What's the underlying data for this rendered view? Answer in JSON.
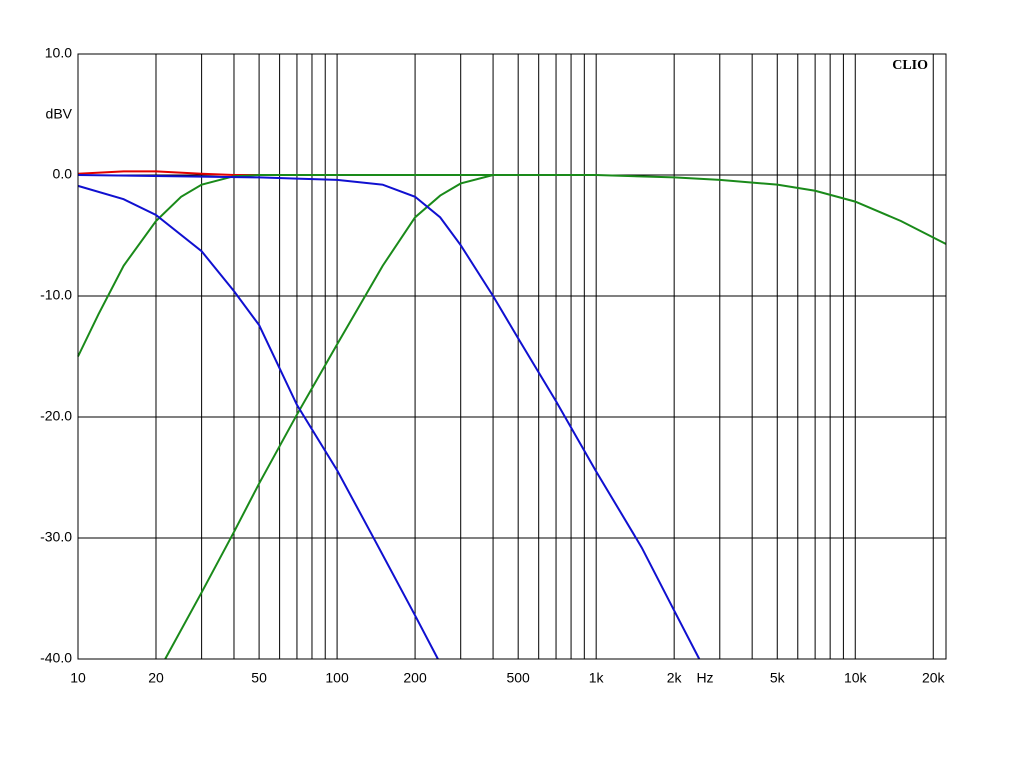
{
  "chart_data": {
    "type": "line",
    "log_x": true,
    "grid": true,
    "brand": "CLIO",
    "y_label": "dBV",
    "x_label": "Hz",
    "xlim": [
      10,
      22400
    ],
    "ylim": [
      -40,
      10
    ],
    "xticks": [
      10,
      20,
      50,
      100,
      200,
      500,
      {
        "value": 1000,
        "label": "1k"
      },
      {
        "value": 2000,
        "label": "2k"
      },
      {
        "value": 5000,
        "label": "5k"
      },
      {
        "value": 10000,
        "label": "10k"
      },
      {
        "value": 20000,
        "label": "20k"
      }
    ],
    "x_minor_grid": [
      30,
      40,
      60,
      70,
      80,
      90,
      300,
      400,
      600,
      700,
      800,
      900,
      3000,
      4000,
      6000,
      7000,
      8000,
      9000
    ],
    "yticks": [
      {
        "value": 10,
        "label": "10.0"
      },
      {
        "value": 0,
        "label": "0.0"
      },
      {
        "value": -10,
        "label": "-10.0"
      },
      {
        "value": -20,
        "label": "-20.0"
      },
      {
        "value": -30,
        "label": "-30.0"
      },
      {
        "value": -40,
        "label": "-40.0"
      }
    ],
    "series": [
      {
        "color": "#e00000",
        "x": [
          10,
          15,
          20,
          30,
          40,
          100,
          400
        ],
        "values": [
          0.1,
          0.3,
          0.3,
          0.1,
          0,
          0,
          0
        ]
      },
      {
        "color": "#1a8a1a",
        "x": [
          10,
          12,
          15,
          20,
          25,
          30,
          40,
          50,
          100,
          400
        ],
        "values": [
          -15,
          -11.5,
          -7.5,
          -3.8,
          -1.8,
          -0.8,
          -0.1,
          0,
          0,
          0
        ]
      },
      {
        "color": "#1a8a1a",
        "x": [
          21.7,
          30,
          40,
          50,
          70,
          100,
          150,
          200,
          250,
          300,
          400,
          1000,
          2000,
          3000,
          5000,
          7000,
          10000,
          15000,
          22400
        ],
        "values": [
          -40,
          -34.5,
          -29.5,
          -25.5,
          -19.8,
          -14,
          -7.5,
          -3.5,
          -1.7,
          -0.7,
          0,
          0,
          -0.2,
          -0.4,
          -0.8,
          -1.3,
          -2.2,
          -3.8,
          -5.7
        ]
      },
      {
        "color": "#1010d0",
        "x": [
          10,
          15,
          20,
          30,
          40,
          50,
          70,
          100,
          140,
          200,
          245
        ],
        "values": [
          -0.9,
          -2,
          -3.3,
          -6.3,
          -9.6,
          -12.4,
          -19,
          -24.4,
          -30.2,
          -36.4,
          -40
        ]
      },
      {
        "color": "#1010d0",
        "x": [
          10,
          50,
          70,
          100,
          150,
          200,
          250,
          300,
          400,
          500,
          700,
          1000,
          1500,
          2000,
          2500
        ],
        "values": [
          0,
          -0.2,
          -0.3,
          -0.4,
          -0.8,
          -1.8,
          -3.5,
          -5.8,
          -10,
          -13.5,
          -18.7,
          -24.5,
          -30.8,
          -36,
          -40
        ]
      }
    ]
  }
}
